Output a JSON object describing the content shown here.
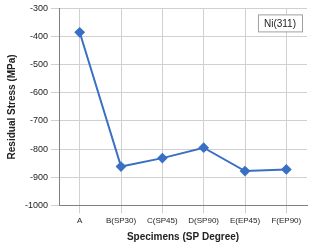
{
  "chart_data": {
    "type": "line",
    "x_label": "Specimens (SP Degree)",
    "y_label": "Residual Stress (MPa)",
    "annotations": [
      "Ni(311)"
    ],
    "categories": [
      "A",
      "B(SP30)",
      "C(SP45)",
      "D(SP90)",
      "E(EP45)",
      "F(EP90)"
    ],
    "values": [
      -385,
      -862,
      -832,
      -795,
      -878,
      -872
    ],
    "color": "#3b6fc4",
    "marker": "diamond",
    "ylim": [
      -1000,
      -300
    ],
    "yticks": [
      -1000,
      -900,
      -800,
      -700,
      -600,
      -500,
      -400,
      -300
    ],
    "grid": true
  }
}
